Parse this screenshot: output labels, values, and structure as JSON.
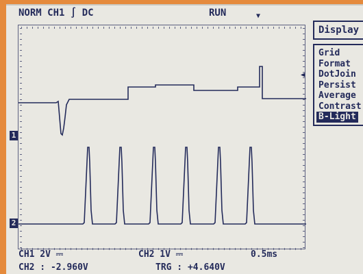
{
  "header": {
    "mode": "NORM  CH1 ∫ DC",
    "status": "RUN"
  },
  "menu": {
    "title": "Display",
    "items": [
      {
        "label": "Grid"
      },
      {
        "label": "Format"
      },
      {
        "label": "DotJoin"
      },
      {
        "label": "Persist"
      },
      {
        "label": "Average"
      },
      {
        "label": "Contrast"
      },
      {
        "label": "B-Light",
        "selected": true
      }
    ]
  },
  "channels": {
    "ch1_marker": "1",
    "ch2_marker": "2"
  },
  "footer": {
    "ch1_scale": "CH1  2V ⎓",
    "ch2_scale": "CH2  1V ⎓",
    "timebase": "0.5ms",
    "ch2_readout": "CH2 : -2.960V",
    "trg_readout": "TRG : +4.640V"
  },
  "icons": {
    "trigger_position": "trigger-position-marker-icon",
    "trigger_level": "trigger-level-marker-icon"
  },
  "colors": {
    "screen": "#e9e8e2",
    "trace": "#232a5a",
    "bezel": "#e58a3c"
  }
}
